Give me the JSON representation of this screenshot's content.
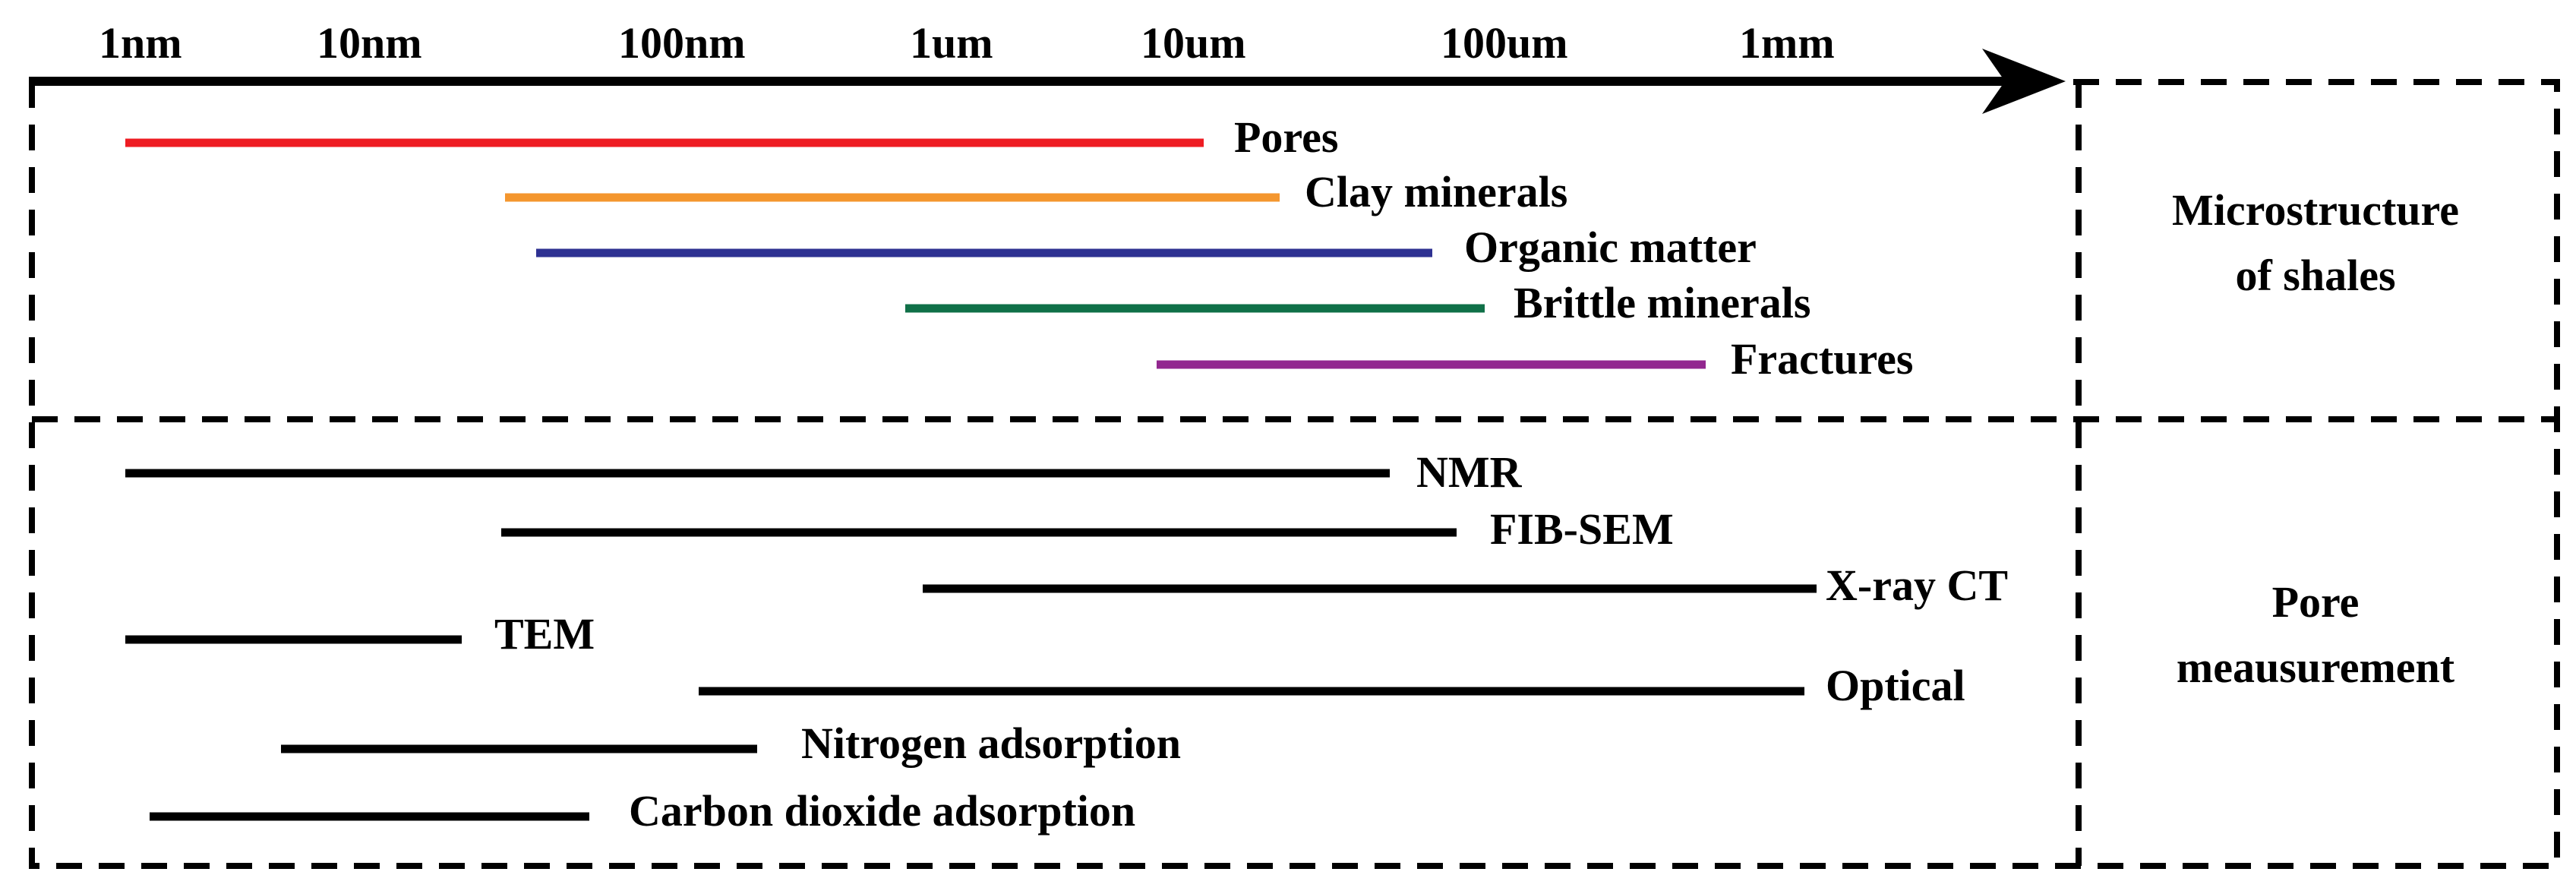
{
  "scale_ticks": [
    "1nm",
    "10nm",
    "100nm",
    "1um",
    "10um",
    "100um",
    "1mm"
  ],
  "panels": {
    "top": {
      "label_line1": "Microstructure",
      "label_line2": "of shales"
    },
    "bottom": {
      "label_line1": "Pore",
      "label_line2": "meausurement"
    }
  },
  "colors": {
    "pores": "#ee1c23",
    "clay_minerals": "#f4962e",
    "organic_matter": "#2e3192",
    "brittle_minerals": "#107048",
    "fractures": "#92278f",
    "methods": "#000000"
  },
  "microstructure": [
    {
      "id": "pores",
      "label": "Pores",
      "color": "#ee1c23",
      "from": "1nm",
      "to_decades_from_1nm": 4.2
    },
    {
      "id": "clay-minerals",
      "label": "Clay minerals",
      "color": "#f4962e",
      "from_decades_from_1nm": 1.9,
      "to_decades_from_1nm": 4.5
    },
    {
      "id": "organic-matter",
      "label": "Organic matter",
      "color": "#2e3192",
      "from_decades_from_1nm": 2.0,
      "to_decades_from_1nm": 5.1
    },
    {
      "id": "brittle-minerals",
      "label": "Brittle minerals",
      "color": "#107048",
      "from_decades_from_1nm": 3.0,
      "to_decades_from_1nm": 5.3
    },
    {
      "id": "fractures",
      "label": "Fractures",
      "color": "#92278f",
      "from_decades_from_1nm": 4.0,
      "to_decades_from_1nm": 6.0
    }
  ],
  "methods": [
    {
      "id": "nmr",
      "label": "NMR",
      "from_decades_from_1nm": 0.0,
      "to_decades_from_1nm": 5.0
    },
    {
      "id": "fib-sem",
      "label": "FIB-SEM",
      "from_decades_from_1nm": 1.9,
      "to_decades_from_1nm": 5.3
    },
    {
      "id": "x-ray-ct",
      "label": "X-ray CT",
      "from_decades_from_1nm": 3.0,
      "to_decades_from_1nm": 6.4
    },
    {
      "id": "tem",
      "label": "TEM",
      "from_decades_from_1nm": 0.0,
      "to_decades_from_1nm": 1.3
    },
    {
      "id": "optical",
      "label": "Optical",
      "from_decades_from_1nm": 2.6,
      "to_decades_from_1nm": 6.4
    },
    {
      "id": "nitrogen-adsorption",
      "label": "Nitrogen adsorption",
      "from_decades_from_1nm": 0.6,
      "to_decades_from_1nm": 2.4
    },
    {
      "id": "carbon-dioxide-adsorption",
      "label": "Carbon dioxide adsorption",
      "from_decades_from_1nm": 0.1,
      "to_decades_from_1nm": 1.8
    }
  ]
}
